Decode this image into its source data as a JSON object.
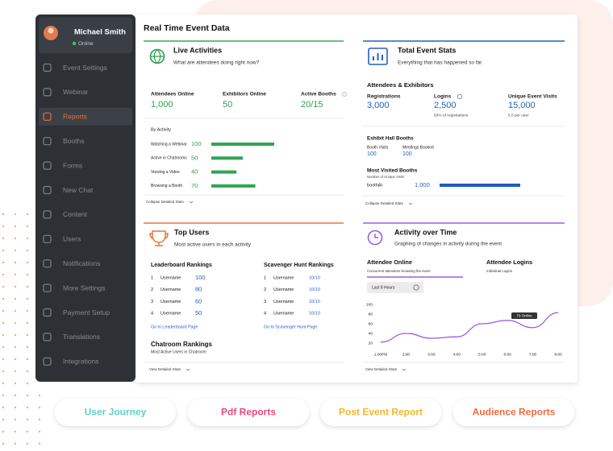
{
  "sidebar": {
    "user": {
      "name": "Michael Smith",
      "status": "Online"
    },
    "menu": [
      "Event Settings",
      "Webinar",
      "Reports",
      "Booths",
      "Forms",
      "New Chat",
      "Content",
      "Users",
      "Notifications",
      "More Settings",
      "Payment Setup",
      "Translations",
      "Integrations"
    ]
  },
  "header": {
    "title": "Real Time Event Data"
  },
  "live_activities": {
    "title": "Live Activities",
    "subtitle": "What are attendees doing right now?",
    "stats": [
      {
        "label": "Attendees Online",
        "value": "1,000"
      },
      {
        "label": "Exhibitors Online",
        "value": "50"
      },
      {
        "label": "Active Booths",
        "value": "20/15"
      }
    ],
    "by_activity": {
      "heading": "By Activity",
      "rows": [
        {
          "label": "Watching a Webinar",
          "value": 100
        },
        {
          "label": "Active in Chatrooms",
          "value": 50
        },
        {
          "label": "Viewing a Video",
          "value": 40
        },
        {
          "label": "Browsing a Booth",
          "value": 70
        }
      ]
    },
    "collapse": "Collapse Detailed Stats"
  },
  "total_event_stats": {
    "title": "Total Event Stats",
    "subtitle": "Everything that has happened so far",
    "section": "Attendees & Exhibitors",
    "stats": [
      {
        "label": "Registrations",
        "value": "3,000"
      },
      {
        "label": "Logins",
        "value": "2,500",
        "note": "83% of registrations"
      },
      {
        "label": "Unique Event Visits",
        "value": "15,000",
        "note": "5.5 per user"
      }
    ],
    "booths": {
      "heading": "Exhibit Hall Booths",
      "stats": [
        {
          "label": "Booth Visits",
          "value": "100"
        },
        {
          "label": "Meetings Booked",
          "value": "100"
        }
      ]
    },
    "most_visited": {
      "heading": "Most Visited Booths",
      "subheading": "Number of Unique Visits",
      "rows": [
        {
          "label": "boothAI",
          "value": 1000,
          "value_label": "1,000"
        }
      ]
    },
    "collapse": "Collapse Detailed Stats"
  },
  "top_users": {
    "title": "Top Users",
    "subtitle": "Most active users in each activity",
    "leaderboard": {
      "heading": "Leaderboard Rankings",
      "rows": [
        {
          "rank": "1",
          "name": "Username",
          "score": 100
        },
        {
          "rank": "2",
          "name": "Username",
          "score": 80
        },
        {
          "rank": "3",
          "name": "Username",
          "score": 60
        },
        {
          "rank": "4",
          "name": "Username",
          "score": 50
        }
      ],
      "link": "Go to Leaderboard Page"
    },
    "scavenger": {
      "heading": "Scavenger Hunt Rankings",
      "rows": [
        {
          "rank": "1",
          "name": "Username",
          "score": "10/10"
        },
        {
          "rank": "2",
          "name": "Username",
          "score": "10/10"
        },
        {
          "rank": "3",
          "name": "Username",
          "score": "10/10"
        },
        {
          "rank": "4",
          "name": "Username",
          "score": "10/10"
        }
      ],
      "link": "Go to Scavenger Hunt Page"
    },
    "chatroom": {
      "heading": "Chatroom Rankings",
      "subheading": "Most Active Users in Chatroom"
    },
    "view": "View Detailed Stats"
  },
  "activity_over_time": {
    "title": "Activity over Time",
    "subtitle": "Graphing of changes in activity during the event",
    "tabs": [
      {
        "label": "Attendee Online",
        "note": "Concurrent attendees browsing the event"
      },
      {
        "label": "Attendee Logins",
        "note": "Individual Logins"
      }
    ],
    "range": "Last 8 Hours",
    "chart": {
      "type": "line",
      "categories": [
        "1:00PM",
        "2:00",
        "3:00",
        "4:00",
        "5:00",
        "6:00",
        "7:00",
        "8:00"
      ],
      "values": [
        22,
        40,
        30,
        33,
        60,
        67,
        52,
        83
      ],
      "color": "#9b5de5",
      "ylim": [
        0,
        100
      ],
      "yticks": [
        20,
        40,
        60,
        80,
        100
      ],
      "tooltip": "70 Online"
    },
    "view": "View Detailed Stats"
  },
  "buttons": [
    {
      "label": "User Journey",
      "color": "#5fd3c5"
    },
    {
      "label": "Pdf Reports",
      "color": "#e9467c"
    },
    {
      "label": "Post Event Report",
      "color": "#f4b52c"
    },
    {
      "label": "Audience Reports",
      "color": "#ee6b3d"
    }
  ]
}
